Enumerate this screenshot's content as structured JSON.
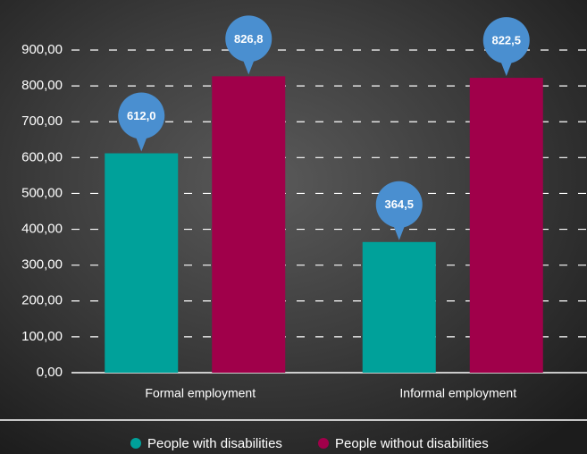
{
  "chart_data": {
    "type": "bar",
    "categories": [
      "Formal employment",
      "Informal employment"
    ],
    "series": [
      {
        "name": "People with disabilities",
        "color": "#00a19a",
        "values": [
          612.0,
          364.5
        ],
        "value_labels": [
          "612,0",
          "364,5"
        ]
      },
      {
        "name": "People without disabilities",
        "color": "#a0004a",
        "values": [
          826.8,
          822.5
        ],
        "value_labels": [
          "826,8",
          "822,5"
        ]
      }
    ],
    "ylim": [
      0,
      900
    ],
    "yticks": [
      {
        "value": 0,
        "label": "0,00"
      },
      {
        "value": 100,
        "label": "100,00"
      },
      {
        "value": 200,
        "label": "200,00"
      },
      {
        "value": 300,
        "label": "300,00"
      },
      {
        "value": 400,
        "label": "400,00"
      },
      {
        "value": 500,
        "label": "500,00"
      },
      {
        "value": 600,
        "label": "600,00"
      },
      {
        "value": 700,
        "label": "700,00"
      },
      {
        "value": 800,
        "label": "800,00"
      },
      {
        "value": 900,
        "label": "900,00"
      }
    ],
    "grid": true,
    "label_color": "#4a8fd0",
    "legend_position": "bottom"
  }
}
